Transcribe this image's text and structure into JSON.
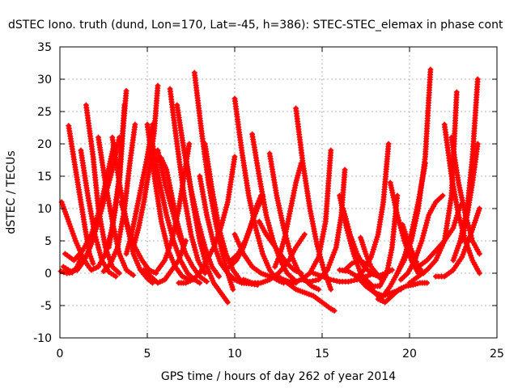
{
  "chart_data": {
    "type": "scatter",
    "title": "dSTEC Iono. truth (dund, Lon=170, Lat=-45, h=386): STEC-STEC_elemax in phase cont",
    "xlabel": "GPS time / hours of day 262 of year 2014",
    "ylabel": "dSTEC  / TECUs",
    "xlim": [
      0,
      25
    ],
    "ylim": [
      -10,
      35
    ],
    "xticks": [
      0,
      5,
      10,
      15,
      20,
      25
    ],
    "yticks": [
      -10,
      -5,
      0,
      5,
      10,
      15,
      20,
      25,
      30,
      35
    ],
    "grid": true,
    "marker": "plus",
    "color": "#ff0000",
    "series": [
      {
        "x": [
          0.05,
          0.4,
          0.7,
          1.0,
          1.2
        ],
        "y": [
          0.3,
          0.0,
          0.1,
          1.0,
          2.5
        ]
      },
      {
        "x": [
          0.1,
          0.5,
          0.9,
          1.3,
          1.6,
          1.8
        ],
        "y": [
          11,
          8,
          5,
          2.5,
          1.2,
          0.5
        ]
      },
      {
        "x": [
          0.5,
          0.9,
          1.2,
          1.5,
          1.7,
          1.9
        ],
        "y": [
          22.8,
          16,
          11,
          6,
          3,
          1.5
        ]
      },
      {
        "x": [
          1.2,
          1.6,
          2.0,
          2.4,
          2.8,
          3.2
        ],
        "y": [
          19,
          12,
          6,
          2,
          0.2,
          -0.5
        ]
      },
      {
        "x": [
          1.5,
          1.9,
          2.2,
          2.6,
          3.0,
          3.4
        ],
        "y": [
          26,
          18,
          10,
          4,
          1,
          0
        ]
      },
      {
        "x": [
          2.2,
          2.6,
          3.0,
          3.4,
          3.8,
          4.2
        ],
        "y": [
          21,
          14,
          8,
          3,
          0.5,
          -0.3
        ]
      },
      {
        "x": [
          0.2,
          0.6,
          1.0,
          1.4,
          1.8,
          2.2,
          2.6,
          3.0,
          3.4
        ],
        "y": [
          1,
          0.3,
          0.5,
          2,
          4.5,
          8,
          12,
          16,
          21
        ]
      },
      {
        "x": [
          0.3,
          0.8,
          1.3,
          1.8,
          2.3,
          2.7,
          3.1
        ],
        "y": [
          3,
          2,
          3.5,
          6,
          10,
          15,
          20
        ]
      },
      {
        "x": [
          1.8,
          2.2,
          2.6,
          3.0,
          3.4,
          3.7
        ],
        "y": [
          0.5,
          1,
          3,
          7,
          14,
          26
        ]
      },
      {
        "x": [
          2.5,
          2.9,
          3.3,
          3.7,
          4.0,
          4.3
        ],
        "y": [
          0.3,
          1.5,
          4,
          10,
          17,
          23
        ]
      },
      {
        "x": [
          2.8,
          3.1,
          3.4,
          3.6,
          3.8
        ],
        "y": [
          4,
          9,
          15,
          22,
          28.2
        ]
      },
      {
        "x": [
          3.5,
          3.9,
          4.3,
          4.7,
          5.1,
          5.5
        ],
        "y": [
          11,
          7,
          4,
          2,
          0.5,
          0
        ]
      },
      {
        "x": [
          3.0,
          3.4,
          3.8,
          4.2,
          4.6,
          5.0,
          5.3
        ],
        "y": [
          21,
          14,
          8,
          3,
          0.5,
          -0.8,
          -1.5
        ]
      },
      {
        "x": [
          3.8,
          4.1,
          4.4,
          4.7,
          5.0,
          5.3
        ],
        "y": [
          3,
          6,
          10,
          14,
          18,
          23
        ]
      },
      {
        "x": [
          4.2,
          4.5,
          4.8,
          5.1,
          5.4,
          5.6
        ],
        "y": [
          4,
          7,
          11,
          16,
          22,
          29
        ]
      },
      {
        "x": [
          5.0,
          5.4,
          5.8,
          6.2,
          6.6,
          7.0,
          7.4
        ],
        "y": [
          23,
          15,
          8,
          3.5,
          1,
          -0.5,
          -1
        ]
      },
      {
        "x": [
          5.3,
          5.7,
          6.1,
          6.5,
          6.9,
          7.3,
          7.7,
          8.0
        ],
        "y": [
          20,
          14,
          9,
          5,
          2,
          0,
          -1,
          -1.5
        ]
      },
      {
        "x": [
          5.6,
          6.0,
          6.4,
          6.8,
          7.2,
          7.6,
          8.0,
          8.4
        ],
        "y": [
          19,
          14,
          10,
          6,
          3,
          1,
          -0.5,
          -1.3
        ]
      },
      {
        "x": [
          5.5,
          5.8,
          6.1,
          6.4,
          6.7,
          7.0
        ],
        "y": [
          17.5,
          17.8,
          16,
          12,
          8,
          5
        ]
      },
      {
        "x": [
          6.3,
          6.7,
          7.1,
          7.5,
          7.9,
          8.3
        ],
        "y": [
          28.5,
          20,
          12,
          6,
          2,
          0
        ]
      },
      {
        "x": [
          6.7,
          7.1,
          7.5,
          7.9,
          8.3,
          8.7,
          9.1
        ],
        "y": [
          26,
          19,
          13,
          8,
          4,
          1,
          -0.5
        ]
      },
      {
        "x": [
          7.2,
          7.6,
          8.0,
          8.4,
          8.8,
          9.2,
          9.6
        ],
        "y": [
          18,
          11,
          5,
          1,
          -1.5,
          -3,
          -4.5
        ]
      },
      {
        "x": [
          7.7,
          8.1,
          8.5,
          8.9,
          9.3,
          9.6,
          9.9
        ],
        "y": [
          31,
          22,
          14,
          8,
          3,
          0,
          -2.5
        ]
      },
      {
        "x": [
          8.3,
          8.7,
          9.1,
          9.5,
          9.9,
          10.3
        ],
        "y": [
          20,
          13,
          7,
          3,
          0.5,
          -1
        ]
      },
      {
        "x": [
          8.0,
          8.4,
          8.8,
          9.2,
          9.6,
          10.0,
          10.4,
          10.8,
          11.3
        ],
        "y": [
          15,
          9,
          4.5,
          1.5,
          0,
          -1,
          -1.5,
          -1.6,
          -1.8
        ]
      },
      {
        "x": [
          4.8,
          5.2,
          5.6,
          6.0,
          6.4,
          6.8,
          7.2
        ],
        "y": [
          0.5,
          -0.5,
          -1.5,
          -1,
          0.5,
          2,
          5
        ]
      },
      {
        "x": [
          5.6,
          6.0,
          6.4,
          6.8,
          7.1,
          7.4
        ],
        "y": [
          0.5,
          2,
          5,
          10,
          15,
          20
        ]
      },
      {
        "x": [
          6.8,
          7.2,
          7.6,
          8.0,
          8.4,
          8.8,
          9.2,
          9.6,
          10.0
        ],
        "y": [
          -1.5,
          -1.5,
          -1,
          0,
          2,
          4,
          7,
          11,
          18
        ]
      },
      {
        "x": [
          10.0,
          10.4,
          10.8,
          11.2,
          11.6,
          12.0,
          12.4,
          12.8
        ],
        "y": [
          27,
          19,
          12,
          7,
          3,
          0.5,
          -1,
          -1.5
        ]
      },
      {
        "x": [
          10.0,
          10.5,
          11.0,
          11.5,
          12.0,
          12.5,
          13.0,
          13.5
        ],
        "y": [
          6,
          3,
          1,
          0,
          -0.5,
          -1,
          -1.3,
          -1.5
        ]
      },
      {
        "x": [
          9.7,
          10.1,
          10.5,
          10.9,
          11.2,
          11.5
        ],
        "y": [
          1,
          2,
          4,
          7,
          10,
          12
        ]
      },
      {
        "x": [
          9.8,
          10.2,
          10.6,
          11.0,
          11.3,
          11.6
        ],
        "y": [
          2,
          3,
          5,
          8,
          10,
          12
        ]
      },
      {
        "x": [
          11.0,
          11.4,
          11.8,
          12.2,
          12.6,
          13.0,
          13.4
        ],
        "y": [
          21.5,
          15,
          9,
          5,
          2,
          0,
          -1
        ]
      },
      {
        "x": [
          11.4,
          11.8,
          12.2,
          12.6,
          13.0,
          13.4,
          13.8
        ],
        "y": [
          8,
          6,
          4.5,
          3,
          1.5,
          0.5,
          0
        ]
      },
      {
        "x": [
          12.0,
          12.4,
          12.8,
          13.2,
          13.6,
          14.0,
          14.4,
          14.8
        ],
        "y": [
          18.5,
          12,
          7,
          3,
          0.5,
          -1,
          -2,
          -2.5
        ]
      },
      {
        "x": [
          10.5,
          11.0,
          11.5,
          12.0,
          12.5,
          13.0,
          13.5,
          14.0
        ],
        "y": [
          -1,
          -1.5,
          -1.5,
          -1,
          0,
          1.5,
          4,
          6
        ]
      },
      {
        "x": [
          13.5,
          13.9,
          14.3,
          14.7,
          15.1,
          15.5
        ],
        "y": [
          25.5,
          17,
          10,
          4.5,
          0.5,
          -2.5
        ]
      },
      {
        "x": [
          12.3,
          12.6,
          12.9,
          13.2,
          13.5,
          13.8
        ],
        "y": [
          1,
          3,
          6,
          10,
          14,
          17
        ]
      },
      {
        "x": [
          12.5,
          13.0,
          13.5,
          14.0,
          14.5,
          15.0,
          15.5,
          15.7
        ],
        "y": [
          -0.5,
          -1.5,
          -2.5,
          -3,
          -3.5,
          -4.5,
          -5.5,
          -5.8
        ]
      },
      {
        "x": [
          12.8,
          13.3,
          13.8,
          14.3,
          14.8,
          15.2,
          15.5
        ],
        "y": [
          -1,
          -1.5,
          -1,
          0,
          2.5,
          8,
          19
        ]
      },
      {
        "x": [
          13.8,
          14.3,
          14.8,
          15.3,
          15.8,
          16.1,
          16.3
        ],
        "y": [
          -1,
          -1.3,
          -1,
          0.5,
          4,
          9,
          16
        ]
      },
      {
        "x": [
          14.5,
          15.0,
          15.5,
          16.0,
          16.5,
          17.0,
          17.5,
          18.0
        ],
        "y": [
          0,
          -0.5,
          -1,
          -1.3,
          -1.3,
          -1,
          -0.5,
          0
        ]
      },
      {
        "x": [
          16.2,
          16.6,
          17.0,
          17.4,
          17.8,
          18.2,
          18.6,
          19.0
        ],
        "y": [
          10,
          6,
          3,
          1,
          0,
          -0.5,
          0,
          0.5
        ]
      },
      {
        "x": [
          16.0,
          16.4,
          16.8,
          17.2,
          17.6,
          18.0,
          18.4
        ],
        "y": [
          12,
          7,
          3,
          0,
          -1.5,
          -3,
          -4
        ]
      },
      {
        "x": [
          16.3,
          16.7,
          17.1,
          17.5
        ],
        "y": [
          0.5,
          1.5,
          2,
          1.5
        ]
      },
      {
        "x": [
          17.2,
          17.5,
          17.8,
          18.1,
          18.4
        ],
        "y": [
          5.5,
          3,
          1,
          0,
          -1
        ]
      },
      {
        "x": [
          16.0,
          16.5,
          17.0,
          17.5,
          18.0,
          18.5,
          19.0,
          19.5
        ],
        "y": [
          0.5,
          0.3,
          -0.5,
          -2,
          -3,
          -3.5,
          -3,
          -2.5
        ]
      },
      {
        "x": [
          17.5,
          17.9,
          18.3,
          18.7,
          19.0,
          19.3
        ],
        "y": [
          -1,
          -2,
          -2,
          0,
          4,
          12
        ]
      },
      {
        "x": [
          17.0,
          17.4,
          17.8,
          18.2,
          18.5,
          18.8
        ],
        "y": [
          -0.5,
          0.5,
          2.5,
          6,
          11,
          20
        ]
      },
      {
        "x": [
          18.2,
          18.6,
          19.0,
          19.4,
          19.8,
          20.2,
          20.6,
          21.0
        ],
        "y": [
          -4,
          -4.5,
          -3.5,
          -2.5,
          -2,
          -1.8,
          -1.5,
          -1.5
        ]
      },
      {
        "x": [
          18.5,
          18.9,
          19.3,
          19.7,
          20.1,
          20.5,
          20.9
        ],
        "y": [
          -3.5,
          -2,
          0,
          2.5,
          6,
          11,
          17
        ]
      },
      {
        "x": [
          18.9,
          19.3,
          19.7,
          20.1,
          20.5
        ],
        "y": [
          14,
          9,
          5,
          2,
          0
        ]
      },
      {
        "x": [
          19.6,
          19.9,
          20.2,
          20.5,
          20.8
        ],
        "y": [
          7.5,
          5,
          3,
          1,
          0
        ]
      },
      {
        "x": [
          19.3,
          19.7,
          20.1,
          20.5,
          20.9,
          21.2
        ],
        "y": [
          0,
          2,
          5,
          10,
          18,
          31.5
        ]
      },
      {
        "x": [
          19.5,
          19.9,
          20.3,
          20.7,
          21.1,
          21.5,
          21.9
        ],
        "y": [
          -1,
          0,
          2,
          5,
          9,
          11,
          12
        ]
      },
      {
        "x": [
          20.0,
          20.5,
          21.0,
          21.5,
          22.0,
          22.4,
          22.7
        ],
        "y": [
          -1.5,
          -0.5,
          0.5,
          2,
          5,
          12,
          28
        ]
      },
      {
        "x": [
          20.5,
          21.0,
          21.5,
          22.0,
          22.5,
          22.9
        ],
        "y": [
          1,
          2,
          3.5,
          5,
          7,
          10.5
        ]
      },
      {
        "x": [
          22.0,
          22.4,
          22.8,
          23.2,
          23.6,
          24.0
        ],
        "y": [
          23,
          15,
          9,
          5,
          2,
          0
        ]
      },
      {
        "x": [
          22.4,
          22.8,
          23.2,
          23.6,
          24.0
        ],
        "y": [
          21,
          14,
          9,
          5,
          3
        ]
      },
      {
        "x": [
          21.5,
          22.0,
          22.5,
          23.0,
          23.5,
          24.0
        ],
        "y": [
          -0.5,
          -0.5,
          0.5,
          2.5,
          6,
          10
        ]
      },
      {
        "x": [
          22.5,
          22.9,
          23.3,
          23.6,
          23.9
        ],
        "y": [
          2,
          5,
          10,
          18,
          30
        ]
      },
      {
        "x": [
          23.0,
          23.3,
          23.6,
          23.9
        ],
        "y": [
          5,
          9,
          14,
          20
        ]
      }
    ]
  }
}
